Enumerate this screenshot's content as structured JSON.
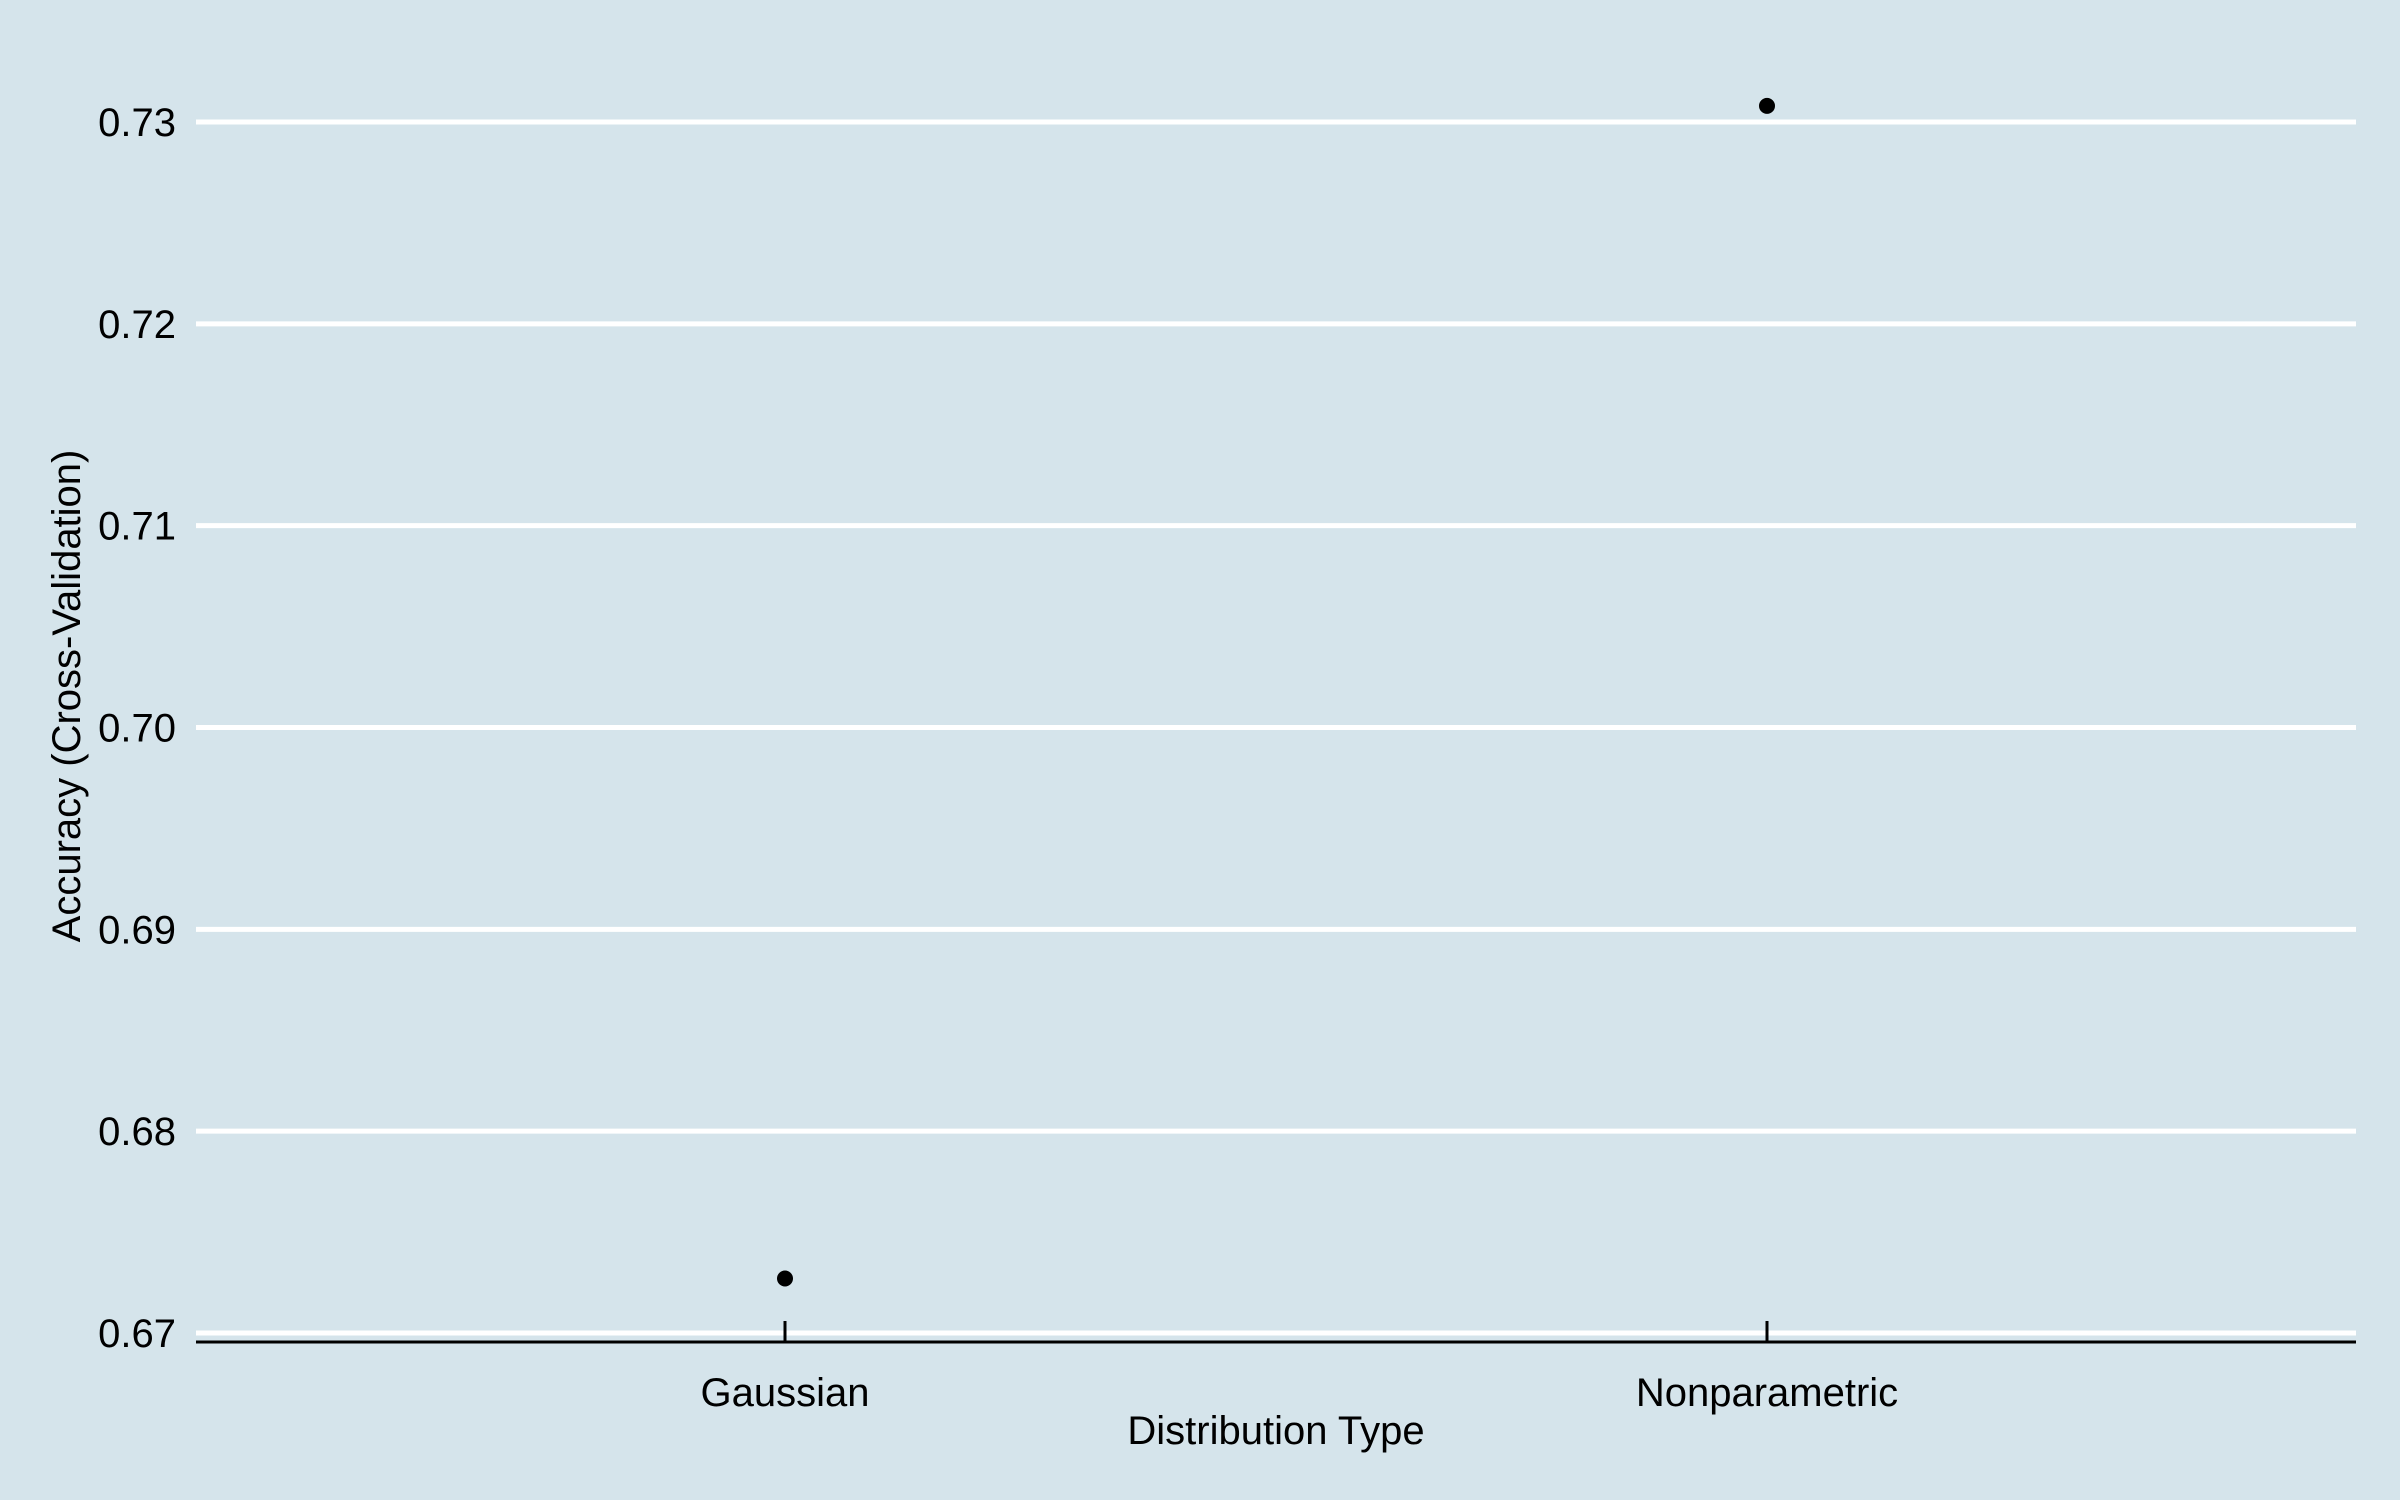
{
  "chart_data": {
    "type": "scatter",
    "title": "",
    "xlabel": "Distribution Type",
    "ylabel": "Accuracy (Cross-Validation)",
    "categories": [
      "Gaussian",
      "Nonparametric"
    ],
    "series": [
      {
        "values": [
          0.6727,
          0.7308
        ]
      }
    ],
    "ylim": [
      0.67,
      0.73
    ],
    "yticks": [
      "0.67",
      "0.68",
      "0.69",
      "0.70",
      "0.71",
      "0.72",
      "0.73"
    ],
    "grid": "horizontal-major",
    "legend": "none"
  },
  "colors": {
    "background": "#d5e4eb",
    "grid": "#ffffff",
    "axis": "#000000",
    "point": "#000000"
  }
}
